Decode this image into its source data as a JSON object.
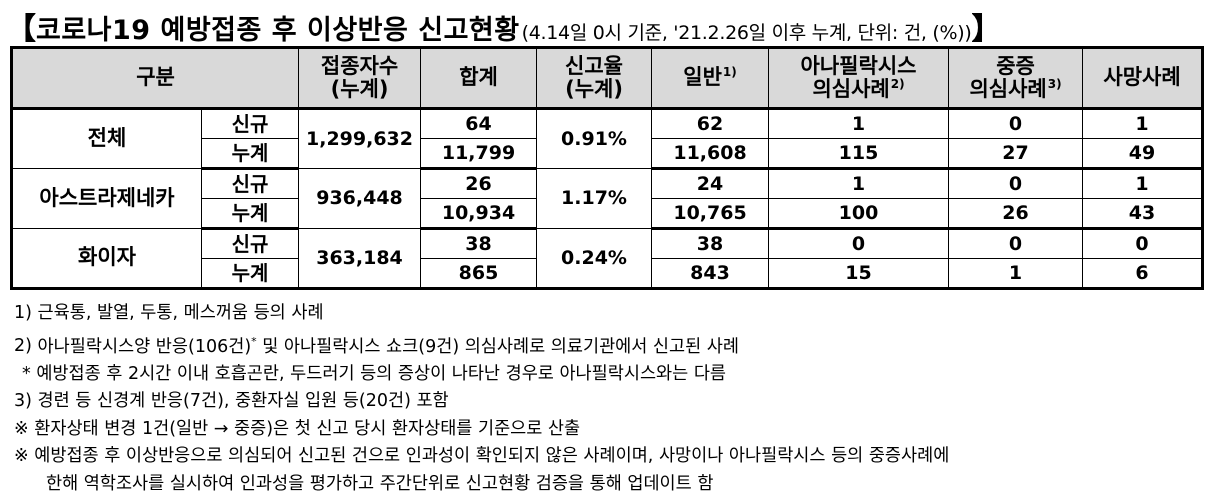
{
  "title": {
    "open_bracket": "【",
    "main": "코로나19 예방접종 후 이상반응 신고현황",
    "subtitle": "(4.14일 0시 기준, '21.2.26일 이후 누계, 단위: 건, (%))",
    "close_bracket": "】"
  },
  "table": {
    "headers": {
      "category": "구분",
      "vaccinated": "접종자수\n(누계)",
      "total": "합계",
      "report_rate": "신고율\n(누계)",
      "general": "일반",
      "general_sup": "1)",
      "anaphylaxis": "아나필락시스\n의심사례",
      "anaphylaxis_sup": "2)",
      "severe": "중증\n의심사례",
      "severe_sup": "3)",
      "death": "사망사례"
    },
    "groups": [
      {
        "name": "전체",
        "vaccinated": "1,299,632",
        "rate": "0.91%",
        "rows": [
          {
            "kind": "신규",
            "total": "64",
            "general": "62",
            "anaphylaxis": "1",
            "severe": "0",
            "death": "1"
          },
          {
            "kind": "누계",
            "total": "11,799",
            "general": "11,608",
            "anaphylaxis": "115",
            "severe": "27",
            "death": "49"
          }
        ]
      },
      {
        "name": "아스트라제네카",
        "vaccinated": "936,448",
        "rate": "1.17%",
        "rows": [
          {
            "kind": "신규",
            "total": "26",
            "general": "24",
            "anaphylaxis": "1",
            "severe": "0",
            "death": "1"
          },
          {
            "kind": "누계",
            "total": "10,934",
            "general": "10,765",
            "anaphylaxis": "100",
            "severe": "26",
            "death": "43"
          }
        ]
      },
      {
        "name": "화이자",
        "vaccinated": "363,184",
        "rate": "0.24%",
        "rows": [
          {
            "kind": "신규",
            "total": "38",
            "general": "38",
            "anaphylaxis": "0",
            "severe": "0",
            "death": "0"
          },
          {
            "kind": "누계",
            "total": "865",
            "general": "843",
            "anaphylaxis": "15",
            "severe": "1",
            "death": "6"
          }
        ]
      }
    ]
  },
  "notes": [
    {
      "marker": "1)",
      "text": "근육통, 발열, 두통, 메스꺼움 등의 사례"
    },
    {
      "marker": "2)",
      "text_a": "아나필락시스양 반응(106건)",
      "sup": "*",
      "text_b": " 및 아나필락시스 쇼크(9건) 의심사례로 의료기관에서 신고된 사례"
    },
    {
      "marker": "*",
      "text": "예방접종 후 2시간 이내 호흡곤란, 두드러기 등의 증상이 나타난 경우로 아나필락시스와는 다름"
    },
    {
      "marker": "3)",
      "text": "경련 등 신경계 반응(7건), 중환자실 입원 등(20건) 포함"
    },
    {
      "marker": "※",
      "text": "환자상태 변경 1건(일반 → 중증)은 첫 신고 당시 환자상태를 기준으로 산출"
    },
    {
      "marker": "※",
      "text": "예방접종 후 이상반응으로 의심되어 신고된 건으로 인과성이 확인되지 않은 사례이며, 사망이나 아나필락시스 등의 중증사례에"
    },
    {
      "marker": "",
      "text": "한해 역학조사를 실시하여 인과성을 평가하고 주간단위로 신고현황 검증을 통해 업데이트 함"
    }
  ]
}
